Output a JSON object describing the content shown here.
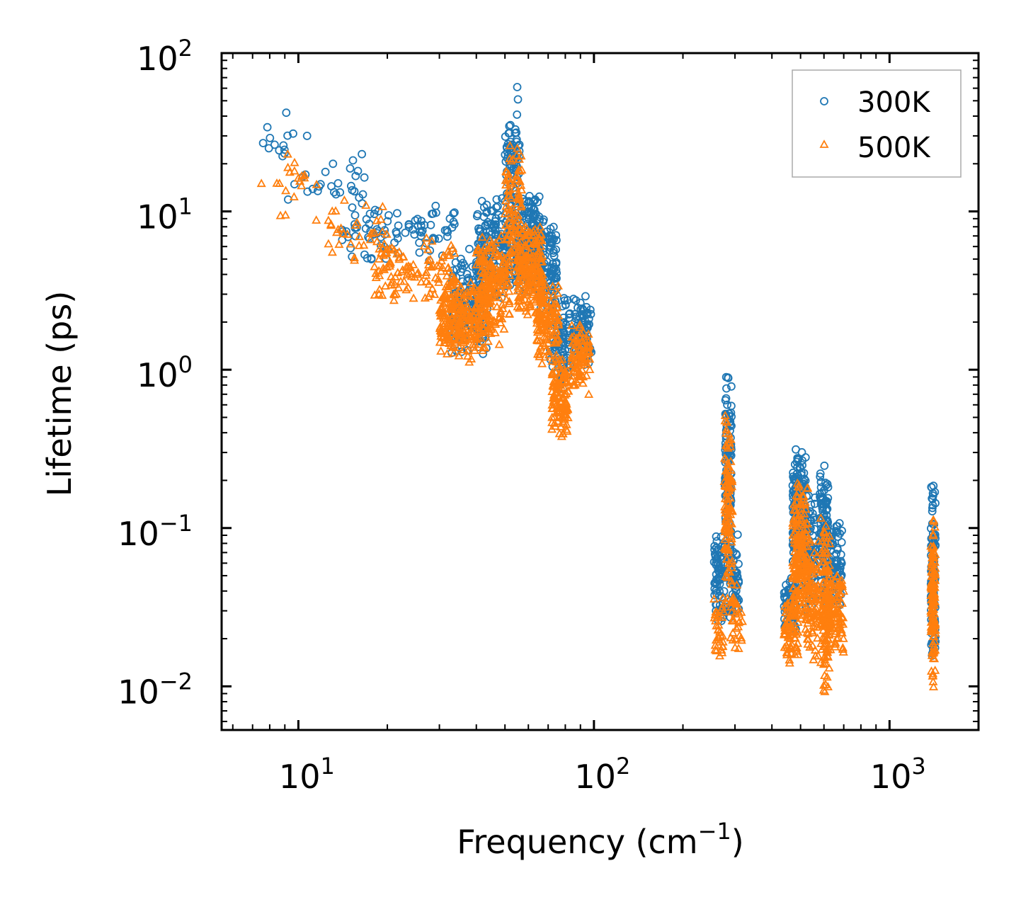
{
  "chart_data": {
    "type": "scatter",
    "title": "",
    "xlabel": "Frequency (cm",
    "xlabel_sup": "−1",
    "xlabel_end": ")",
    "ylabel": "Lifetime (ps)",
    "xscale": "log",
    "yscale": "log",
    "xlim": [
      5.5,
      2000
    ],
    "ylim": [
      0.0053,
      100
    ],
    "xticks": [
      {
        "base": "10",
        "exp": "1"
      },
      {
        "base": "10",
        "exp": "2"
      },
      {
        "base": "10",
        "exp": "3"
      }
    ],
    "yticks": [
      {
        "base": "10",
        "exp": "−2"
      },
      {
        "base": "10",
        "exp": "−1"
      },
      {
        "base": "10",
        "exp": "0"
      },
      {
        "base": "10",
        "exp": "1"
      },
      {
        "base": "10",
        "exp": "2"
      }
    ],
    "legend": {
      "position": "top-right",
      "entries": [
        "300K",
        "500K"
      ]
    },
    "series": [
      {
        "name": "300K",
        "marker": "circle-open",
        "color": "#1f77b4",
        "clusters": [
          {
            "x": [
              7.6,
              9.2
            ],
            "y": [
              15,
              42
            ],
            "n": 10
          },
          {
            "x": [
              9.2,
              17
            ],
            "y": [
              9,
              24
            ],
            "n": 25
          },
          {
            "x": [
              14,
              34
            ],
            "y": [
              4.5,
              12
            ],
            "n": 90
          },
          {
            "x": [
              33,
              44
            ],
            "y": [
              1.2,
              6
            ],
            "n": 180
          },
          {
            "x": [
              40,
              53
            ],
            "y": [
              2.5,
              14
            ],
            "n": 160
          },
          {
            "x": [
              50,
              56
            ],
            "y": [
              10,
              44
            ],
            "n": 70
          },
          {
            "x": [
              54,
              66
            ],
            "y": [
              3,
              14
            ],
            "n": 200
          },
          {
            "x": [
              62,
              75
            ],
            "y": [
              2,
              10
            ],
            "n": 120
          },
          {
            "x": [
              71,
              83
            ],
            "y": [
              0.7,
              3
            ],
            "n": 90
          },
          {
            "x": [
              85,
              98
            ],
            "y": [
              1,
              3.2
            ],
            "n": 90
          },
          {
            "x": [
              255,
              280
            ],
            "y": [
              0.022,
              0.1
            ],
            "n": 70
          },
          {
            "x": [
              277,
              292
            ],
            "y": [
              0.04,
              1.1
            ],
            "n": 120
          },
          {
            "x": [
              288,
              310
            ],
            "y": [
              0.022,
              0.1
            ],
            "n": 60
          },
          {
            "x": [
              440,
              482
            ],
            "y": [
              0.022,
              0.05
            ],
            "n": 70
          },
          {
            "x": [
              470,
              520
            ],
            "y": [
              0.05,
              0.36
            ],
            "n": 160
          },
          {
            "x": [
              510,
              560
            ],
            "y": [
              0.025,
              0.2
            ],
            "n": 100
          },
          {
            "x": [
              580,
              620
            ],
            "y": [
              0.03,
              0.28
            ],
            "n": 110
          },
          {
            "x": [
              615,
              690
            ],
            "y": [
              0.025,
              0.13
            ],
            "n": 90
          },
          {
            "x": [
              1380,
              1430
            ],
            "y": [
              0.012,
              0.21
            ],
            "n": 110
          }
        ],
        "points": [
          {
            "x": 7.6,
            "y": 27
          },
          {
            "x": 9.1,
            "y": 42
          },
          {
            "x": 9.6,
            "y": 31
          },
          {
            "x": 10.7,
            "y": 30
          },
          {
            "x": 13.1,
            "y": 20
          },
          {
            "x": 15.3,
            "y": 21
          },
          {
            "x": 15.9,
            "y": 18
          },
          {
            "x": 16.4,
            "y": 23
          },
          {
            "x": 55.0,
            "y": 61
          },
          {
            "x": 55.3,
            "y": 51
          }
        ]
      },
      {
        "name": "500K",
        "marker": "triangle-open",
        "color": "#ff7f0e",
        "clusters": [
          {
            "x": [
              7.5,
              12
            ],
            "y": [
              9,
              23
            ],
            "n": 14
          },
          {
            "x": [
              12.5,
              20
            ],
            "y": [
              4.3,
              12
            ],
            "n": 35
          },
          {
            "x": [
              18,
              34
            ],
            "y": [
              2.5,
              7
            ],
            "n": 120
          },
          {
            "x": [
              30,
              45
            ],
            "y": [
              1.1,
              4
            ],
            "n": 260
          },
          {
            "x": [
              40,
              52
            ],
            "y": [
              1.4,
              8
            ],
            "n": 180
          },
          {
            "x": [
              50,
              57
            ],
            "y": [
              4,
              26
            ],
            "n": 90
          },
          {
            "x": [
              55,
              67
            ],
            "y": [
              2,
              9
            ],
            "n": 200
          },
          {
            "x": [
              64,
              76
            ],
            "y": [
              1,
              4
            ],
            "n": 120
          },
          {
            "x": [
              72,
              82
            ],
            "y": [
              0.35,
              1.3
            ],
            "n": 120
          },
          {
            "x": [
              84,
              97
            ],
            "y": [
              0.65,
              2.1
            ],
            "n": 90
          },
          {
            "x": [
              255,
              275
            ],
            "y": [
              0.013,
              0.04
            ],
            "n": 35
          },
          {
            "x": [
              276,
              294
            ],
            "y": [
              0.025,
              0.65
            ],
            "n": 120
          },
          {
            "x": [
              290,
              318
            ],
            "y": [
              0.015,
              0.05
            ],
            "n": 30
          },
          {
            "x": [
              440,
              495
            ],
            "y": [
              0.013,
              0.04
            ],
            "n": 70
          },
          {
            "x": [
              470,
              530
            ],
            "y": [
              0.02,
              0.22
            ],
            "n": 180
          },
          {
            "x": [
              520,
              575
            ],
            "y": [
              0.012,
              0.1
            ],
            "n": 100
          },
          {
            "x": [
              585,
              630
            ],
            "y": [
              0.0085,
              0.14
            ],
            "n": 140
          },
          {
            "x": [
              620,
              700
            ],
            "y": [
              0.015,
              0.06
            ],
            "n": 90
          },
          {
            "x": [
              1380,
              1430
            ],
            "y": [
              0.009,
              0.15
            ],
            "n": 120
          }
        ],
        "points": [
          {
            "x": 7.5,
            "y": 15
          },
          {
            "x": 8.7,
            "y": 9.4
          },
          {
            "x": 9.2,
            "y": 23
          },
          {
            "x": 9.7,
            "y": 18
          },
          {
            "x": 10.5,
            "y": 17
          },
          {
            "x": 11.5,
            "y": 8.8
          },
          {
            "x": 52.0,
            "y": 26
          },
          {
            "x": 55.0,
            "y": 25
          }
        ]
      }
    ]
  }
}
